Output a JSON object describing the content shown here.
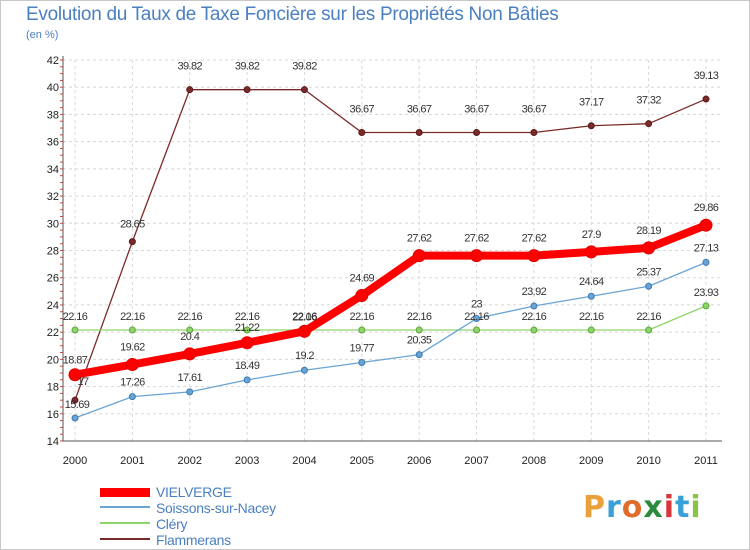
{
  "title": "Evolution du Taux de Taxe Foncière sur les Propriétés Non Bâties",
  "subtitle": "(en %)",
  "logo": {
    "letters": [
      "P",
      "r",
      "o",
      "x",
      "i",
      "t",
      "i"
    ],
    "colors": [
      "#e9a23b",
      "#3aa0d8",
      "#e06c2c",
      "#2a8a3e",
      "#d8363a",
      "#3aa0d8",
      "#8bc34a"
    ]
  },
  "chart_data": {
    "type": "line",
    "title": "Evolution du Taux de Taxe Foncière sur les Propriétés Non Bâties",
    "ylabel": "(en %)",
    "xlabel": "",
    "ylim": [
      14,
      42
    ],
    "yticks": [
      14,
      16,
      18,
      20,
      22,
      24,
      26,
      28,
      30,
      32,
      34,
      36,
      38,
      40,
      42
    ],
    "x": [
      "2000",
      "2001",
      "2002",
      "2003",
      "2004",
      "2005",
      "2006",
      "2007",
      "2008",
      "2009",
      "2010",
      "2011"
    ],
    "series": [
      {
        "name": "Flammerans",
        "color": "#7b2a2a",
        "values": [
          17,
          28.65,
          39.82,
          39.82,
          39.82,
          36.67,
          36.67,
          36.67,
          36.67,
          37.17,
          37.32,
          39.13
        ],
        "labels": [
          "17",
          "28.65",
          "39.82",
          "39.82",
          "39.82",
          "36.67",
          "36.67",
          "36.67",
          "36.67",
          "37.17",
          "37.32",
          "39.13"
        ]
      },
      {
        "name": "Cléry",
        "color": "#8fd46a",
        "values": [
          22.16,
          22.16,
          22.16,
          22.16,
          22.16,
          22.16,
          22.16,
          22.16,
          22.16,
          22.16,
          22.16,
          23.93
        ],
        "labels": [
          "22.16",
          "22.16",
          "22.16",
          "22.16",
          "22.16",
          "22.16",
          "22.16",
          "22.16",
          "22.16",
          "22.16",
          "22.16",
          "23.93"
        ]
      },
      {
        "name": "Soissons-sur-Nacey",
        "color": "#6aa4d4",
        "values": [
          15.69,
          17.26,
          17.61,
          18.49,
          19.2,
          19.77,
          20.35,
          23,
          23.92,
          24.64,
          25.37,
          27.13
        ],
        "labels": [
          "15.69",
          "17.26",
          "17.61",
          "18.49",
          "19.2",
          "19.77",
          "20.35",
          "23",
          "23.92",
          "24.64",
          "25.37",
          "27.13"
        ]
      },
      {
        "name": "VIELVERGE",
        "color": "#ff0000",
        "values": [
          18.87,
          19.62,
          20.4,
          21.22,
          22.06,
          24.69,
          27.62,
          27.62,
          27.62,
          27.9,
          28.19,
          29.86
        ],
        "labels": [
          "18.87",
          "19.62",
          "20.4",
          "21.22",
          "22.06",
          "24.69",
          "27.62",
          "27.62",
          "27.62",
          "27.9",
          "28.19",
          "29.86"
        ]
      }
    ],
    "legend": [
      "VIELVERGE",
      "Soissons-sur-Nacey",
      "Cléry",
      "Flammerans"
    ],
    "legend_position": "bottom-left",
    "grid": true
  }
}
